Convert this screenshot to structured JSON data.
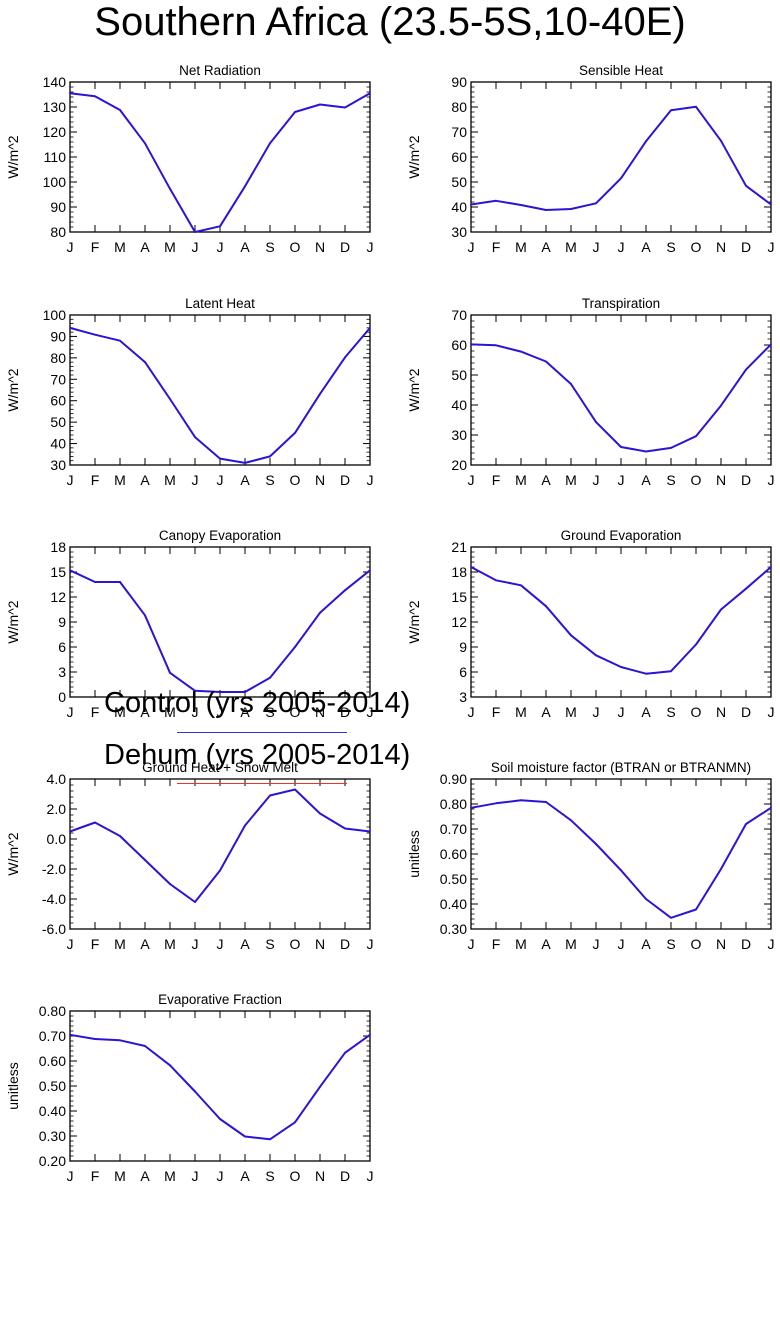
{
  "title": "Southern Africa (23.5-5S,10-40E)",
  "legend": [
    {
      "label": "Control (yrs 2005-2014)",
      "color": "#3333dd"
    },
    {
      "label": "Dehum (yrs 2005-2014)",
      "color": "#ee3322"
    }
  ],
  "chart_data": [
    {
      "type": "line",
      "title": "Net Radiation",
      "ylabel": "W/m^2",
      "categories": [
        "J",
        "F",
        "M",
        "A",
        "M",
        "J",
        "J",
        "A",
        "S",
        "O",
        "N",
        "D",
        "J"
      ],
      "ylim": [
        80,
        140
      ],
      "yticks": [
        80,
        90,
        100,
        110,
        120,
        130,
        140
      ],
      "ytick_labels": [
        "80",
        "90",
        "100",
        "110",
        "120",
        "130",
        "140"
      ],
      "series": [
        {
          "name": "Control (yrs 2005-2014)",
          "color": "#2a14d6",
          "values": [
            135.5,
            134.3,
            128.8,
            115.5,
            97.3,
            80,
            82.3,
            98.3,
            115.5,
            128,
            131,
            129.8,
            135.5
          ]
        }
      ]
    },
    {
      "type": "line",
      "title": "Sensible Heat",
      "ylabel": "W/m^2",
      "categories": [
        "J",
        "F",
        "M",
        "A",
        "M",
        "J",
        "J",
        "A",
        "S",
        "O",
        "N",
        "D",
        "J"
      ],
      "ylim": [
        30,
        90
      ],
      "yticks": [
        30,
        40,
        50,
        60,
        70,
        80,
        90
      ],
      "ytick_labels": [
        "30",
        "40",
        "50",
        "60",
        "70",
        "80",
        "90"
      ],
      "series": [
        {
          "name": "Control (yrs 2005-2014)",
          "color": "#2a14d6",
          "values": [
            41,
            42.5,
            40.8,
            38.8,
            39.2,
            41.5,
            51.5,
            66.3,
            78.7,
            80.1,
            66.5,
            48.5,
            41
          ]
        }
      ]
    },
    {
      "type": "line",
      "title": "Latent Heat",
      "ylabel": "W/m^2",
      "categories": [
        "J",
        "F",
        "M",
        "A",
        "M",
        "J",
        "J",
        "A",
        "S",
        "O",
        "N",
        "D",
        "J"
      ],
      "ylim": [
        30,
        100
      ],
      "yticks": [
        30,
        40,
        50,
        60,
        70,
        80,
        90,
        100
      ],
      "ytick_labels": [
        "30",
        "40",
        "50",
        "60",
        "70",
        "80",
        "90",
        "100"
      ],
      "series": [
        {
          "name": "Control (yrs 2005-2014)",
          "color": "#2a14d6",
          "values": [
            94,
            90.8,
            88,
            78,
            60.8,
            43,
            33,
            31,
            34,
            45,
            63.2,
            80.2,
            94
          ]
        }
      ]
    },
    {
      "type": "line",
      "title": "Transpiration",
      "ylabel": "W/m^2",
      "categories": [
        "J",
        "F",
        "M",
        "A",
        "M",
        "J",
        "J",
        "A",
        "S",
        "O",
        "N",
        "D",
        "J"
      ],
      "ylim": [
        20,
        70
      ],
      "yticks": [
        20,
        30,
        40,
        50,
        60,
        70
      ],
      "ytick_labels": [
        "20",
        "30",
        "40",
        "50",
        "60",
        "70"
      ],
      "series": [
        {
          "name": "Control (yrs 2005-2014)",
          "color": "#2a14d6",
          "values": [
            60.2,
            59.9,
            57.8,
            54.5,
            47,
            34.3,
            26,
            24.5,
            25.7,
            29.6,
            39.8,
            51.8,
            60.2
          ]
        }
      ]
    },
    {
      "type": "line",
      "title": "Canopy Evaporation",
      "ylabel": "W/m^2",
      "categories": [
        "J",
        "F",
        "M",
        "A",
        "M",
        "J",
        "J",
        "A",
        "S",
        "O",
        "N",
        "D",
        "J"
      ],
      "ylim": [
        0,
        18
      ],
      "yticks": [
        0,
        3,
        6,
        9,
        12,
        15,
        18
      ],
      "ytick_labels": [
        "0",
        "3",
        "6",
        "9",
        "12",
        "15",
        "18"
      ],
      "series": [
        {
          "name": "Control (yrs 2005-2014)",
          "color": "#2a14d6",
          "values": [
            15.2,
            13.8,
            13.8,
            9.8,
            2.9,
            0.75,
            0.6,
            0.6,
            2.3,
            6,
            10.1,
            12.8,
            15.2
          ]
        }
      ]
    },
    {
      "type": "line",
      "title": "Ground Evaporation",
      "ylabel": "W/m^2",
      "categories": [
        "J",
        "F",
        "M",
        "A",
        "M",
        "J",
        "J",
        "A",
        "S",
        "O",
        "N",
        "D",
        "J"
      ],
      "ylim": [
        3,
        21
      ],
      "yticks": [
        3,
        6,
        9,
        12,
        15,
        18,
        21
      ],
      "ytick_labels": [
        "3",
        "6",
        "9",
        "12",
        "15",
        "18",
        "21"
      ],
      "series": [
        {
          "name": "Control (yrs 2005-2014)",
          "color": "#2a14d6",
          "values": [
            18.6,
            17,
            16.4,
            13.9,
            10.4,
            8,
            6.6,
            5.8,
            6.1,
            9.3,
            13.5,
            16,
            18.6
          ]
        }
      ]
    },
    {
      "type": "line",
      "title": "Ground Heat + Snow Melt",
      "ylabel": "W/m^2",
      "categories": [
        "J",
        "F",
        "M",
        "A",
        "M",
        "J",
        "J",
        "A",
        "S",
        "O",
        "N",
        "D",
        "J"
      ],
      "ylim": [
        -6,
        4
      ],
      "yticks": [
        -6,
        -4,
        -2,
        0,
        2,
        4
      ],
      "ytick_labels": [
        "-6.0",
        "-4.0",
        "-2.0",
        "0.0",
        "2.0",
        "4.0"
      ],
      "series": [
        {
          "name": "Control (yrs 2005-2014)",
          "color": "#2a14d6",
          "values": [
            0.5,
            1.1,
            0.2,
            -1.4,
            -3,
            -4.2,
            -2.1,
            0.9,
            2.9,
            3.3,
            1.7,
            0.7,
            0.5
          ]
        }
      ]
    },
    {
      "type": "line",
      "title": "Soil moisture factor (BTRAN or BTRANMN)",
      "ylabel": "unitless",
      "categories": [
        "J",
        "F",
        "M",
        "A",
        "M",
        "J",
        "J",
        "A",
        "S",
        "O",
        "N",
        "D",
        "J"
      ],
      "ylim": [
        0.3,
        0.9
      ],
      "yticks": [
        0.3,
        0.4,
        0.5,
        0.6,
        0.7,
        0.8,
        0.9
      ],
      "ytick_labels": [
        "0.30",
        "0.40",
        "0.50",
        "0.60",
        "0.70",
        "0.80",
        "0.90"
      ],
      "series": [
        {
          "name": "Control (yrs 2005-2014)",
          "color": "#2a14d6",
          "values": [
            0.785,
            0.803,
            0.815,
            0.808,
            0.735,
            0.64,
            0.535,
            0.42,
            0.345,
            0.378,
            0.54,
            0.72,
            0.785
          ]
        }
      ]
    },
    {
      "type": "line",
      "title": "Evaporative Fraction",
      "ylabel": "unitless",
      "categories": [
        "J",
        "F",
        "M",
        "A",
        "M",
        "J",
        "J",
        "A",
        "S",
        "O",
        "N",
        "D",
        "J"
      ],
      "ylim": [
        0.2,
        0.8
      ],
      "yticks": [
        0.2,
        0.3,
        0.4,
        0.5,
        0.6,
        0.7,
        0.8
      ],
      "ytick_labels": [
        "0.20",
        "0.30",
        "0.40",
        "0.50",
        "0.60",
        "0.70",
        "0.80"
      ],
      "series": [
        {
          "name": "Control (yrs 2005-2014)",
          "color": "#2a14d6",
          "values": [
            0.705,
            0.688,
            0.683,
            0.66,
            0.583,
            0.478,
            0.368,
            0.298,
            0.287,
            0.355,
            0.497,
            0.633,
            0.705
          ]
        }
      ]
    }
  ]
}
